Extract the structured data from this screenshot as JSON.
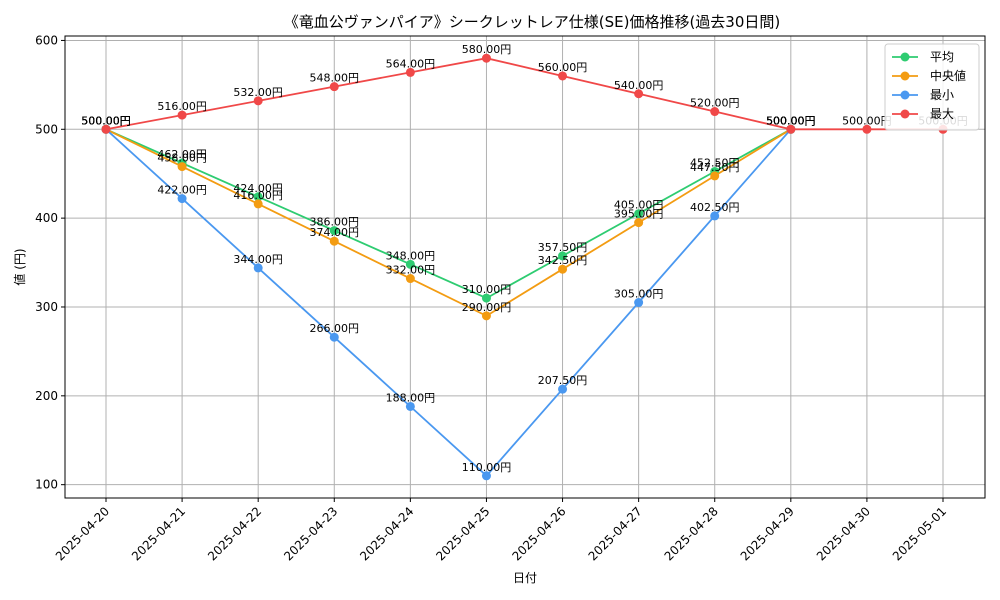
{
  "chart_data": {
    "type": "line",
    "title": "《竜血公ヴァンパイア》シークレットレア仕様(SE)価格推移(過去30日間)",
    "xlabel": "日付",
    "ylabel": "値 (円)",
    "ylim": [
      85,
      605
    ],
    "yticks": [
      100,
      200,
      300,
      400,
      500,
      600
    ],
    "grid": true,
    "legend_position": "top-right",
    "label_suffix": "円",
    "x": [
      "2025-04-20",
      "2025-04-21",
      "2025-04-22",
      "2025-04-23",
      "2025-04-24",
      "2025-04-25",
      "2025-04-26",
      "2025-04-27",
      "2025-04-28",
      "2025-04-29",
      "2025-04-30",
      "2025-05-01"
    ],
    "series": [
      {
        "name": "平均",
        "color": "#2ecc71",
        "values": [
          500,
          462,
          424,
          386,
          348,
          310,
          357.5,
          405,
          452.5,
          500,
          null,
          null
        ]
      },
      {
        "name": "中央値",
        "color": "#f39c12",
        "values": [
          500,
          458,
          416,
          374,
          332,
          290,
          342.5,
          395,
          447.5,
          500,
          null,
          null
        ]
      },
      {
        "name": "最小",
        "color": "#4a98f0",
        "values": [
          500,
          422,
          344,
          266,
          188,
          110,
          207.5,
          305,
          402.5,
          500,
          null,
          null
        ]
      },
      {
        "name": "最大",
        "color": "#f04848",
        "values": [
          500,
          516,
          532,
          548,
          564,
          580,
          560,
          540,
          520,
          500,
          500,
          500
        ]
      }
    ]
  }
}
